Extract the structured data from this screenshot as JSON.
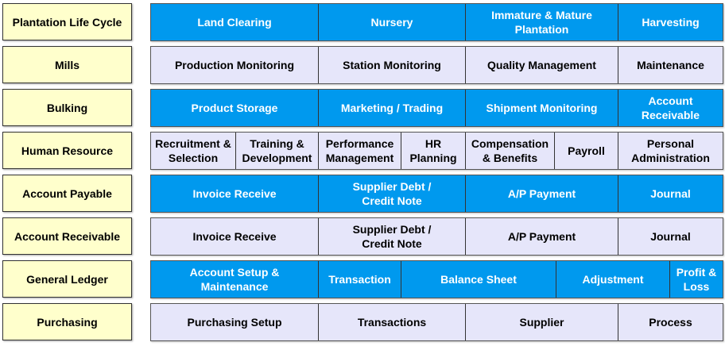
{
  "rows": [
    {
      "category": "Plantation Life Cycle",
      "cells": [
        "Land Clearing",
        "Nursery",
        "Immature & Mature\nPlantation",
        "Harvesting"
      ]
    },
    {
      "category": "Mills",
      "cells": [
        "Production Monitoring",
        "Station Monitoring",
        "Quality Management",
        "Maintenance"
      ]
    },
    {
      "category": "Bulking",
      "cells": [
        "Product Storage",
        "Marketing / Trading",
        "Shipment Monitoring",
        "Account\nReceivable"
      ]
    },
    {
      "category": "Human Resource",
      "cells": [
        "Recruitment &\nSelection",
        "Training &\nDevelopment",
        "Performance\nManagement",
        "HR\nPlanning",
        "Compensation\n& Benefits",
        "Payroll",
        "Personal\nAdministration"
      ]
    },
    {
      "category": "Account Payable",
      "cells": [
        "Invoice Receive",
        "Supplier Debt /\nCredit Note",
        "A/P Payment",
        "Journal"
      ]
    },
    {
      "category": "Account Receivable",
      "cells": [
        "Invoice Receive",
        "Supplier Debt /\nCredit Note",
        "A/P Payment",
        "Journal"
      ]
    },
    {
      "category": "General Ledger",
      "cells": [
        "Account Setup &\nMaintenance",
        "Transaction",
        "Balance Sheet",
        "Adjustment",
        "Profit &\nLoss"
      ]
    },
    {
      "category": "Purchasing",
      "cells": [
        "Purchasing Setup",
        "Transactions",
        "Supplier",
        "Process"
      ]
    }
  ],
  "colors": {
    "blue_row": "#0099ee",
    "light_row": "#e6e6fa",
    "category_fill": "#ffffcc"
  }
}
